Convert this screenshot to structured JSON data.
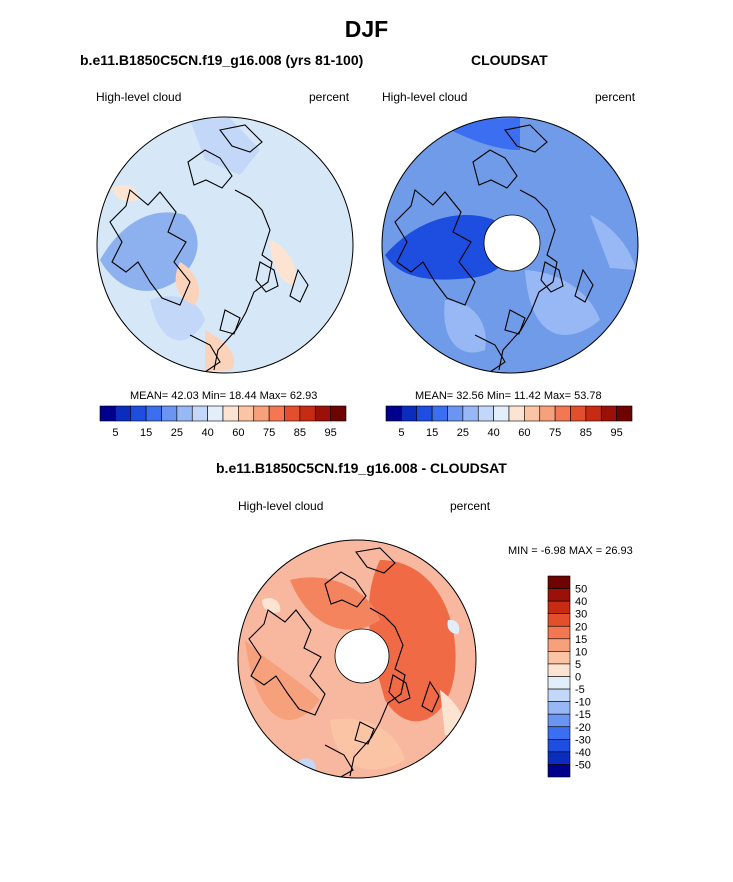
{
  "page": {
    "title": "DJF"
  },
  "panels": [
    {
      "id": "model",
      "title": "b.e11.B1850C5CN.f19_g16.008 (yrs 81-100)",
      "left_label": "High-level cloud",
      "right_label": "percent",
      "stats": "MEAN=  42.03  Min=  18.44  Max=  62.93",
      "ocean_color": "#d6e8f8"
    },
    {
      "id": "obs",
      "title": "CLOUDSAT",
      "left_label": "High-level cloud",
      "right_label": "percent",
      "stats": "MEAN=  32.56  Min=  11.42  Max=  53.78",
      "ocean_color": "#6f9be8"
    },
    {
      "id": "diff",
      "title": "b.e11.B1850C5CN.f19_g16.008 - CLOUDSAT",
      "left_label": "High-level cloud",
      "right_label": "percent",
      "stats": "MIN =  -6.98 MAX =  26.93",
      "ocean_color": "#f8b8a0"
    }
  ],
  "colorbar_abs": {
    "colors": [
      "#00008c",
      "#0a2dbd",
      "#1e4ee0",
      "#3b6ef0",
      "#6a95f3",
      "#97b8f5",
      "#c3d8f8",
      "#e3eefb",
      "#fde4d2",
      "#fbc4a5",
      "#f7a07c",
      "#f27752",
      "#e34e2c",
      "#c72b14",
      "#9b1108",
      "#6e0402"
    ],
    "labels": [
      "5",
      "15",
      "25",
      "40",
      "60",
      "75",
      "85",
      "95"
    ]
  },
  "colorbar_diff": {
    "colors": [
      "#00008c",
      "#0a2dbd",
      "#1e4ee0",
      "#3b6ef0",
      "#6a95f3",
      "#97b8f5",
      "#c3d8f8",
      "#e3eefb",
      "#fde4d2",
      "#fbc4a5",
      "#f7a07c",
      "#f27752",
      "#e34e2c",
      "#c72b14",
      "#9b1108",
      "#6e0402"
    ],
    "labels": [
      "50",
      "40",
      "30",
      "20",
      "15",
      "10",
      "5",
      "0",
      "-5",
      "-10",
      "-15",
      "-20",
      "-30",
      "-40",
      "-50"
    ]
  }
}
